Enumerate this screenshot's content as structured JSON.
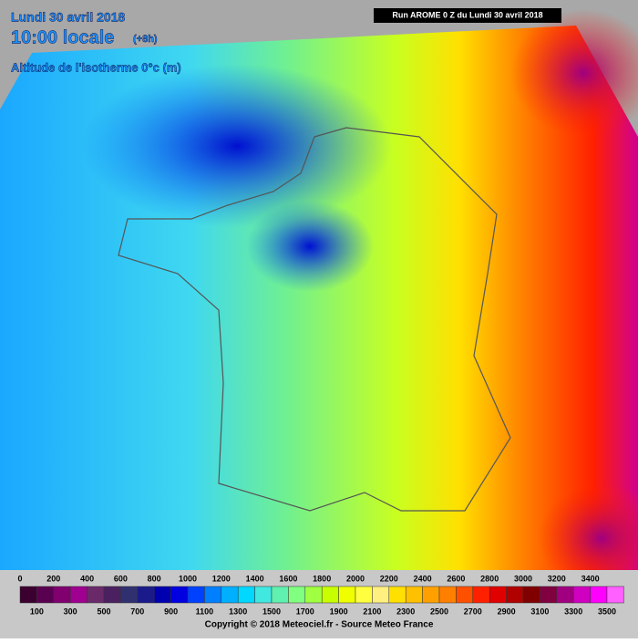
{
  "header": {
    "date": "Lundi 30 avril 2018",
    "time": "10:00 locale",
    "lead": "(+8h)",
    "variable": "Altitude de l'isotherme 0°c (m)",
    "run": "Run AROME 0 Z du Lundi 30 avril 2018"
  },
  "legend": {
    "top_labels": [
      0,
      200,
      400,
      600,
      800,
      1000,
      1200,
      1400,
      1600,
      1800,
      2000,
      2200,
      2400,
      2600,
      2800,
      3000,
      3200,
      3400
    ],
    "bottom_labels": [
      100,
      300,
      500,
      700,
      900,
      1100,
      1300,
      1500,
      1700,
      1900,
      2100,
      2300,
      2500,
      2700,
      2900,
      3100,
      3300,
      3500
    ],
    "colors": [
      "#3b0030",
      "#5a0050",
      "#800070",
      "#a00090",
      "#6a2a6a",
      "#4a2060",
      "#303070",
      "#1a1a8a",
      "#0000b0",
      "#0000e0",
      "#0040ff",
      "#0080ff",
      "#00b0ff",
      "#00d8ff",
      "#40e8e0",
      "#60f0b0",
      "#80ff80",
      "#a0ff40",
      "#c8ff00",
      "#f0ff00",
      "#ffff40",
      "#fff080",
      "#ffe000",
      "#ffc000",
      "#ffa000",
      "#ff8000",
      "#ff5000",
      "#ff2000",
      "#e00000",
      "#b00000",
      "#800000",
      "#800040",
      "#a00080",
      "#d000c0",
      "#ff00ff",
      "#ff60ff"
    ]
  },
  "footer": {
    "copyright": "Copyright © 2018 Meteociel.fr - Source Meteo France"
  }
}
